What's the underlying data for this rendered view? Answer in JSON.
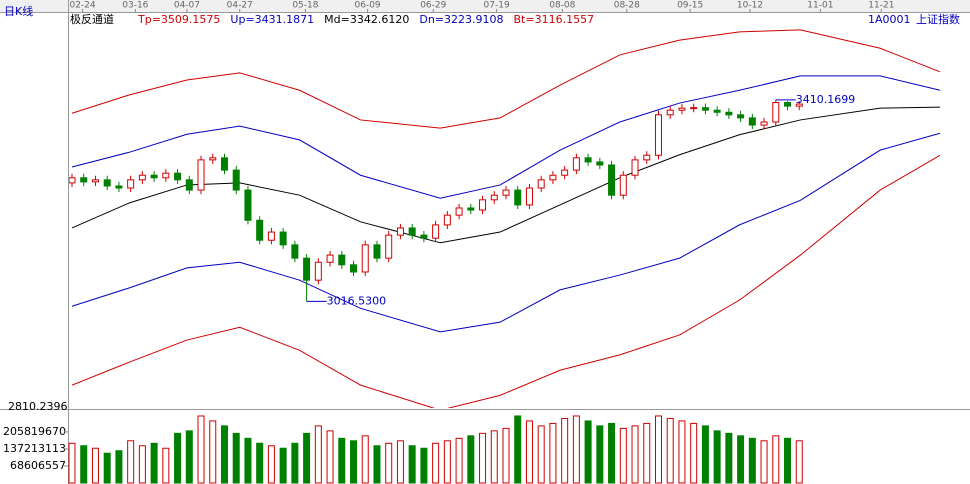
{
  "chart_data": {
    "type": "candlestick",
    "title": "日K线",
    "indicator": "极反通道",
    "code": "1A0001",
    "name": "上证指数",
    "xticks": [
      {
        "value": 0.9,
        "label": "02-24"
      },
      {
        "value": 5.4,
        "label": "03-16"
      },
      {
        "value": 9.8,
        "label": "04-07"
      },
      {
        "value": 14.3,
        "label": "04-27"
      },
      {
        "value": 19.9,
        "label": "05-18"
      },
      {
        "value": 25.2,
        "label": "06-09"
      },
      {
        "value": 30.8,
        "label": "06-29"
      },
      {
        "value": 36.2,
        "label": "07-19"
      },
      {
        "value": 41.8,
        "label": "08-08"
      },
      {
        "value": 47.3,
        "label": "08-28"
      },
      {
        "value": 52.7,
        "label": "09-15"
      },
      {
        "value": 57.8,
        "label": "10-12"
      },
      {
        "value": 63.8,
        "label": "11-01"
      },
      {
        "value": 69.0,
        "label": "11-21"
      }
    ],
    "xlim": [
      0,
      74
    ],
    "ylim": [
      2810.2396,
      3576
    ],
    "yticks": [
      2810.2396
    ],
    "up_color": "#d00000",
    "down_color": "#008000",
    "open": [
      3248,
      3258,
      3250,
      3254,
      3242,
      3238,
      3254,
      3263,
      3258,
      3267,
      3254,
      3234,
      3293,
      3297,
      3273,
      3234,
      3175,
      3136,
      3152,
      3127,
      3101,
      3058,
      3093,
      3107,
      3088,
      3074,
      3127,
      3101,
      3146,
      3160,
      3146,
      3140,
      3166,
      3185,
      3199,
      3195,
      3215,
      3224,
      3234,
      3205,
      3238,
      3254,
      3263,
      3273,
      3297,
      3289,
      3283,
      3224,
      3263,
      3293,
      3302,
      3381,
      3390,
      3394,
      3395,
      3390,
      3386,
      3381,
      3375,
      3361,
      3367,
      3405,
      3398
    ],
    "high": [
      3266,
      3266,
      3262,
      3262,
      3250,
      3262,
      3271,
      3271,
      3275,
      3275,
      3262,
      3301,
      3305,
      3305,
      3281,
      3242,
      3183,
      3160,
      3160,
      3135,
      3109,
      3101,
      3115,
      3115,
      3096,
      3135,
      3135,
      3154,
      3168,
      3168,
      3154,
      3174,
      3193,
      3207,
      3207,
      3223,
      3232,
      3242,
      3242,
      3246,
      3262,
      3271,
      3281,
      3305,
      3305,
      3297,
      3291,
      3271,
      3301,
      3310,
      3389,
      3398,
      3402,
      3403,
      3403,
      3398,
      3394,
      3389,
      3383,
      3375,
      3410.1699,
      3408,
      3408
    ],
    "low": [
      3240,
      3242,
      3242,
      3234,
      3230,
      3230,
      3246,
      3250,
      3250,
      3246,
      3226,
      3226,
      3285,
      3265,
      3226,
      3167,
      3128,
      3128,
      3119,
      3093,
      3016.53,
      3050,
      3085,
      3080,
      3066,
      3066,
      3093,
      3093,
      3138,
      3138,
      3132,
      3132,
      3158,
      3177,
      3187,
      3187,
      3207,
      3216,
      3197,
      3197,
      3230,
      3246,
      3255,
      3265,
      3281,
      3275,
      3216,
      3216,
      3255,
      3285,
      3294,
      3373,
      3382,
      3386,
      3382,
      3378,
      3373,
      3367,
      3353,
      3353,
      3359,
      3390,
      3390
    ],
    "close": [
      3258,
      3250,
      3254,
      3242,
      3238,
      3254,
      3263,
      3258,
      3267,
      3254,
      3234,
      3293,
      3297,
      3273,
      3234,
      3175,
      3136,
      3152,
      3127,
      3101,
      3058,
      3093,
      3107,
      3088,
      3074,
      3127,
      3101,
      3146,
      3160,
      3146,
      3140,
      3166,
      3185,
      3199,
      3195,
      3215,
      3224,
      3234,
      3205,
      3238,
      3254,
      3263,
      3273,
      3297,
      3289,
      3283,
      3224,
      3263,
      3293,
      3302,
      3381,
      3390,
      3394,
      3395,
      3390,
      3386,
      3381,
      3375,
      3361,
      3367,
      3405,
      3398,
      3402
    ],
    "bands": [
      {
        "name": "Tp",
        "color": "#d00000",
        "last": 3509.1575,
        "last_label": "Tp=3509.1575",
        "x": [
          0,
          4.9,
          9.8,
          14.3,
          19.4,
          24.6,
          31.4,
          36.5,
          41.6,
          46.7,
          51.8,
          56.9,
          62.1,
          68.9,
          74
        ],
        "values": [
          3384,
          3420,
          3449,
          3463,
          3429,
          3371,
          3355,
          3375,
          3439,
          3498,
          3527,
          3543,
          3547,
          3511,
          3465
        ]
      },
      {
        "name": "Up",
        "color": "#0000c0",
        "last": 3431.1871,
        "last_label": "Up=3431.1871",
        "x": [
          0,
          4.9,
          9.8,
          14.3,
          19.4,
          24.6,
          31.4,
          36.5,
          41.6,
          46.7,
          51.8,
          56.9,
          62.1,
          68.9,
          74
        ],
        "values": [
          3279,
          3308,
          3343,
          3359,
          3332,
          3263,
          3218,
          3244,
          3312,
          3367,
          3404,
          3429,
          3457,
          3457,
          3429
        ]
      },
      {
        "name": "Md",
        "color": "#000000",
        "last": 3342.612,
        "last_label": "Md=3342.6120",
        "x": [
          0,
          4.9,
          9.8,
          14.3,
          19.4,
          24.6,
          31.4,
          36.5,
          41.6,
          46.7,
          51.8,
          56.9,
          62.1,
          68.9,
          74
        ],
        "values": [
          3160,
          3209,
          3244,
          3248,
          3224,
          3172,
          3131,
          3152,
          3205,
          3258,
          3303,
          3342,
          3371,
          3394,
          3396
        ]
      },
      {
        "name": "Dn",
        "color": "#0000c0",
        "last": 3223.9108,
        "last_label": "Dn=3223.9108",
        "x": [
          0,
          4.9,
          9.8,
          14.3,
          19.4,
          24.6,
          31.4,
          36.5,
          41.6,
          46.7,
          51.8,
          56.9,
          62.1,
          68.9,
          74
        ],
        "values": [
          3007,
          3043,
          3082,
          3093,
          3058,
          3003,
          2957,
          2976,
          3039,
          3068,
          3101,
          3166,
          3214,
          3312,
          3345
        ]
      },
      {
        "name": "Bt",
        "color": "#d00000",
        "last": 3116.1557,
        "last_label": "Bt=3116.1557",
        "x": [
          0,
          4.9,
          9.8,
          14.3,
          19.4,
          24.6,
          31.4,
          36.5,
          41.6,
          46.7,
          51.8,
          56.9,
          62.1,
          68.9,
          74
        ],
        "values": [
          2853,
          2898,
          2941,
          2966,
          2921,
          2853,
          2804,
          2833,
          2882,
          2912,
          2951,
          3019,
          3107,
          3234,
          3302
        ]
      }
    ],
    "annotations": [
      {
        "index": 20,
        "value": 3016.53,
        "label": "3016.5300"
      },
      {
        "index": 60,
        "value": 3410.1699,
        "label": "3410.1699"
      }
    ],
    "volume": [
      160000000,
      150000000,
      140000000,
      120000000,
      130000000,
      170000000,
      150000000,
      160000000,
      140000000,
      200000000,
      210000000,
      270000000,
      250000000,
      230000000,
      200000000,
      180000000,
      160000000,
      150000000,
      140000000,
      160000000,
      200000000,
      230000000,
      210000000,
      180000000,
      170000000,
      190000000,
      150000000,
      160000000,
      170000000,
      150000000,
      140000000,
      160000000,
      170000000,
      180000000,
      190000000,
      200000000,
      210000000,
      220000000,
      270000000,
      250000000,
      230000000,
      240000000,
      260000000,
      270000000,
      250000000,
      230000000,
      240000000,
      220000000,
      230000000,
      240000000,
      270000000,
      260000000,
      250000000,
      240000000,
      230000000,
      210000000,
      200000000,
      190000000,
      180000000,
      170000000,
      190000000,
      180000000,
      170000000
    ],
    "vlim": [
      0,
      286000000
    ],
    "vticks": [
      205819670,
      137213113,
      68606557
    ]
  }
}
